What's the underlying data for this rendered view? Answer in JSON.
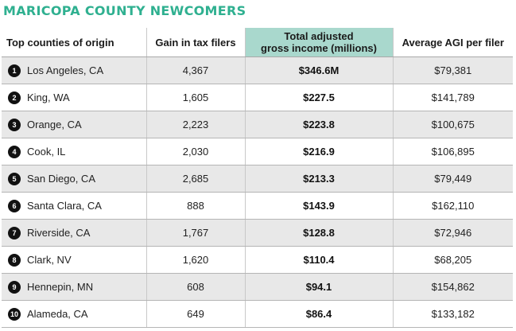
{
  "title": "MARICOPA COUNTY NEWCOMERS",
  "headers": {
    "county": "Top counties of origin",
    "gain": "Gain in tax filers",
    "income_line1": "Total adjusted",
    "income_line2": "gross income (millions)",
    "agi": "Average AGI per filer"
  },
  "colors": {
    "title": "#2fb090",
    "highlight_header": "#a9d8cd",
    "shaded_row": "#e8e8e8",
    "rank_badge": "#111111"
  },
  "rows": [
    {
      "rank": "1",
      "county": "Los Angeles, CA",
      "gain": "4,367",
      "income": "$346.6M",
      "agi": "$79,381"
    },
    {
      "rank": "2",
      "county": "King, WA",
      "gain": "1,605",
      "income": "$227.5",
      "agi": "$141,789"
    },
    {
      "rank": "3",
      "county": "Orange, CA",
      "gain": "2,223",
      "income": "$223.8",
      "agi": "$100,675"
    },
    {
      "rank": "4",
      "county": "Cook, IL",
      "gain": "2,030",
      "income": "$216.9",
      "agi": "$106,895"
    },
    {
      "rank": "5",
      "county": "San Diego, CA",
      "gain": "2,685",
      "income": "$213.3",
      "agi": "$79,449"
    },
    {
      "rank": "6",
      "county": "Santa Clara, CA",
      "gain": "888",
      "income": "$143.9",
      "agi": "$162,110"
    },
    {
      "rank": "7",
      "county": "Riverside, CA",
      "gain": "1,767",
      "income": "$128.8",
      "agi": "$72,946"
    },
    {
      "rank": "8",
      "county": "Clark, NV",
      "gain": "1,620",
      "income": "$110.4",
      "agi": "$68,205"
    },
    {
      "rank": "9",
      "county": "Hennepin, MN",
      "gain": "608",
      "income": "$94.1",
      "agi": "$154,862"
    },
    {
      "rank": "10",
      "county": "Alameda, CA",
      "gain": "649",
      "income": "$86.4",
      "agi": "$133,182"
    }
  ]
}
